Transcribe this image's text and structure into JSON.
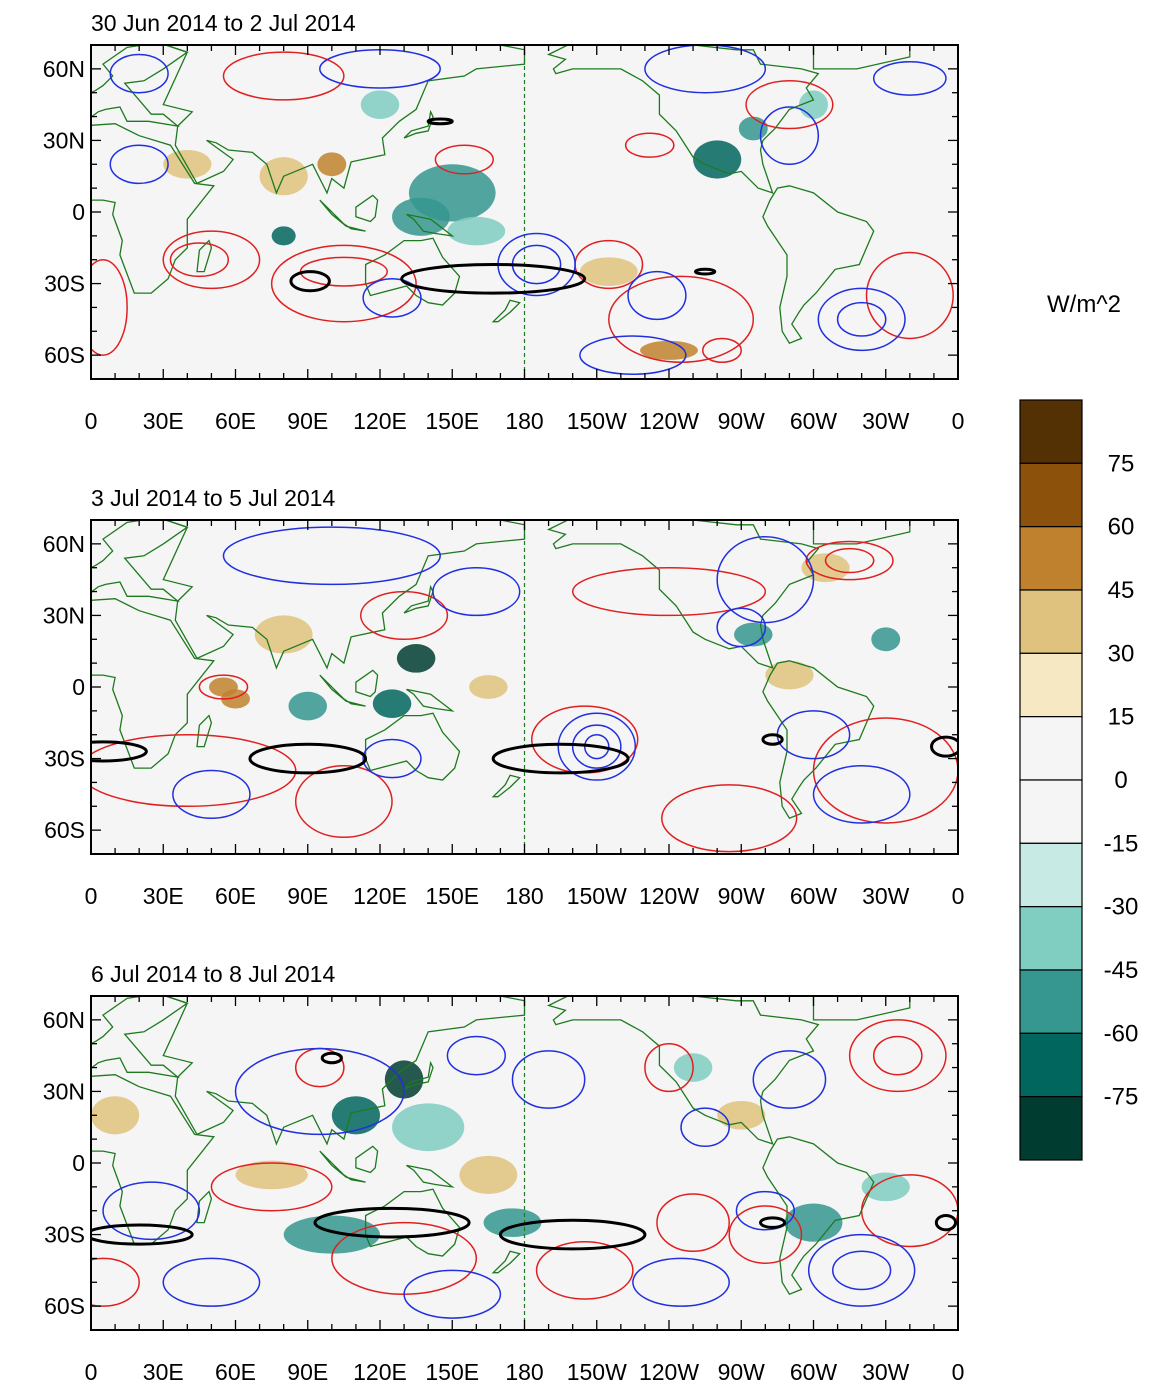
{
  "panels": [
    {
      "title": "30 Jun 2014 to 2 Jul 2014"
    },
    {
      "title": "3 Jul 2014 to 5 Jul 2014"
    },
    {
      "title": "6 Jul 2014 to 8 Jul 2014"
    }
  ],
  "lon_labels": [
    "0",
    "30E",
    "60E",
    "90E",
    "120E",
    "150E",
    "180",
    "150W",
    "120W",
    "90W",
    "60W",
    "30W",
    "0"
  ],
  "lat_labels": [
    "60N",
    "30N",
    "0",
    "30S",
    "60S"
  ],
  "lat_values": [
    60,
    30,
    0,
    -30,
    -60
  ],
  "lat_range": [
    -70,
    70
  ],
  "colorbar": {
    "unit": "W/m^2",
    "labels": [
      "75",
      "60",
      "45",
      "30",
      "15",
      "0",
      "-15",
      "-30",
      "-45",
      "-60",
      "-75"
    ],
    "colors": [
      "#543005",
      "#8c510a",
      "#bf812d",
      "#dfc27d",
      "#f6e8c3",
      "#f5f5f5",
      "#f5f5f5",
      "#c7eae5",
      "#80cdc1",
      "#35978f",
      "#01665e",
      "#003c30"
    ]
  },
  "colors": {
    "coast": "#1e7a1e",
    "pos_contour": "#e02020",
    "neg_contour": "#2030e0",
    "zero_contour": "#000000"
  }
}
